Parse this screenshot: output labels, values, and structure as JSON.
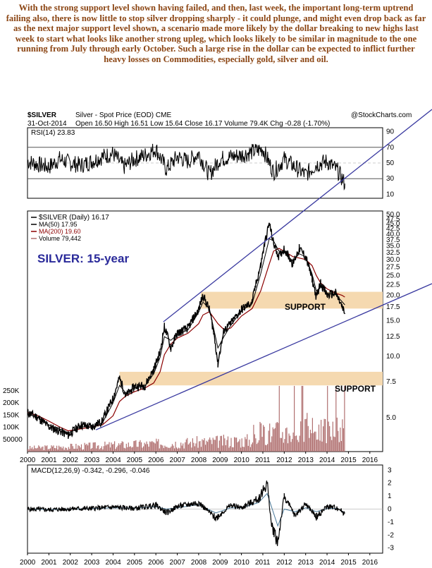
{
  "commentary": "With the strong support level shown having failed, and then, last week, the important long-term uptrend failing also, there is now little to stop silver dropping sharply - it could plunge, and might even drop back as far as the next major support level shown, a scenario made more likely by the dollar breaking to new highs last week to start what looks like another strong upleg, which looks likely to be similar in magnitude to the one running from July through early October. Such a large rise in the dollar can be expected to inflict further heavy losses on Commodities, especially gold, silver and oil.",
  "header": {
    "symbol": "$SILVER",
    "name": "Silver - Spot Price (EOD) CME",
    "watermark": "@StockCharts.com",
    "date": "31-Oct-2014",
    "quote": "Open 16.50  High 16.51  Low 15.64  Close 16.17  Volume 79.4K  Chg -0.28 (-1.70%)"
  },
  "colors": {
    "price": "#000000",
    "ma50": "#000000",
    "ma200": "#8b0000",
    "volume": "#b07070",
    "trendline": "#3a3aa0",
    "support_band": "#f5d9b0",
    "annotation": "#2a2a9a",
    "macd_signal": "#4a7a9a",
    "commentary": "#8b4513"
  },
  "chart_data": [
    {
      "type": "line",
      "panel": "RSI",
      "legend": "RSI(14) 23.83",
      "yticks": [
        10,
        30,
        50,
        70,
        90
      ],
      "ylim": [
        5,
        95
      ],
      "x": [
        2000,
        2000.5,
        2001,
        2001.5,
        2002,
        2002.5,
        2003,
        2003.5,
        2004,
        2004.5,
        2005,
        2005.5,
        2006,
        2006.5,
        2007,
        2007.5,
        2008,
        2008.5,
        2009,
        2009.5,
        2010,
        2010.5,
        2011,
        2011.5,
        2012,
        2012.5,
        2013,
        2013.5,
        2014,
        2014.5,
        2014.83
      ],
      "values": [
        52,
        48,
        45,
        55,
        50,
        47,
        52,
        58,
        62,
        45,
        55,
        60,
        68,
        42,
        58,
        52,
        62,
        35,
        55,
        58,
        60,
        64,
        68,
        38,
        55,
        45,
        35,
        48,
        52,
        40,
        23.83
      ]
    },
    {
      "type": "line",
      "panel": "Price",
      "scale": "log",
      "legend": [
        "$SILVER (Daily) 16.17",
        "MA(50) 17.95",
        "MA(200) 19.60",
        "Volume 79,442"
      ],
      "annotation": "SILVER: 15-year",
      "support_labels": [
        "SUPPORT",
        "SUPPORT"
      ],
      "support_zones": [
        [
          17.2,
          20.8
        ],
        [
          7.2,
          8.4
        ]
      ],
      "yticks": [
        5.0,
        7.5,
        10.0,
        12.5,
        15.0,
        17.5,
        20.0,
        22.5,
        25.0,
        27.5,
        30.0,
        32.5,
        35.0,
        37.5,
        40.0,
        42.5,
        45.0,
        47.5,
        50.0
      ],
      "volume_ticks": [
        "250K",
        "200K",
        "150K",
        "100K",
        "50000"
      ],
      "volume_values": [
        250000,
        200000,
        150000,
        100000,
        50000
      ],
      "xticks": [
        "2000",
        "2001",
        "2002",
        "2003",
        "2004",
        "2005",
        "2006",
        "2007",
        "2008",
        "2009",
        "2010",
        "2011",
        "2012",
        "2013",
        "2014",
        "2015",
        "2016"
      ],
      "xlim": [
        2000,
        2016.6
      ],
      "x": [
        2000,
        2000.5,
        2001,
        2001.5,
        2001.9,
        2002.5,
        2003,
        2003.5,
        2004,
        2004.3,
        2004.6,
        2005,
        2005.5,
        2005.9,
        2006.2,
        2006.4,
        2006.7,
        2007,
        2007.5,
        2008,
        2008.2,
        2008.5,
        2008.9,
        2009.2,
        2009.5,
        2010,
        2010.5,
        2010.9,
        2011.3,
        2011.5,
        2011.75,
        2012,
        2012.4,
        2012.7,
        2013,
        2013.3,
        2013.5,
        2013.7,
        2014,
        2014.4,
        2014.7,
        2014.83
      ],
      "values": [
        5.3,
        5.0,
        4.5,
        4.3,
        4.1,
        4.6,
        4.5,
        4.8,
        6.2,
        7.8,
        6.4,
        7.1,
        7.2,
        8.6,
        10.5,
        14.0,
        11.0,
        13.0,
        13.8,
        17.0,
        20.0,
        17.0,
        9.2,
        13.5,
        14.5,
        17.0,
        18.5,
        28.0,
        45.0,
        36.0,
        31.0,
        34.0,
        28.5,
        34.0,
        31.0,
        24.0,
        19.5,
        23.0,
        20.0,
        20.5,
        17.5,
        16.17
      ],
      "ma50": [
        5.2,
        5.0,
        4.6,
        4.4,
        4.2,
        4.5,
        4.5,
        4.7,
        5.9,
        7.2,
        6.6,
        7.0,
        7.2,
        8.2,
        9.9,
        12.5,
        12.0,
        12.8,
        13.5,
        16.5,
        18.5,
        17.2,
        11.0,
        12.6,
        14.2,
        16.8,
        18.2,
        25.5,
        38.0,
        37.0,
        33.0,
        32.5,
        29.5,
        32.0,
        31.0,
        25.5,
        21.0,
        22.0,
        20.4,
        20.2,
        18.6,
        17.95
      ],
      "ma200": [
        5.3,
        5.1,
        4.8,
        4.5,
        4.3,
        4.4,
        4.5,
        4.6,
        5.1,
        6.0,
        6.4,
        6.7,
        7.0,
        7.4,
        8.4,
        10.2,
        11.5,
        12.3,
        13.0,
        14.5,
        16.0,
        16.6,
        14.5,
        13.5,
        13.8,
        15.8,
        17.2,
        21.0,
        28.5,
        33.0,
        34.0,
        33.0,
        31.0,
        30.5,
        30.0,
        28.0,
        25.0,
        23.0,
        21.5,
        20.5,
        20.0,
        19.6
      ]
    },
    {
      "type": "line",
      "panel": "MACD",
      "legend": "MACD(12,26,9) -0.342, -0.296, -0.046",
      "yticks": [
        3,
        2,
        1,
        0,
        -1,
        -2,
        -3
      ],
      "ylim": [
        -3.4,
        3.4
      ],
      "x": [
        2000,
        2001,
        2002,
        2003,
        2004,
        2005,
        2006,
        2006.5,
        2007,
        2008,
        2008.8,
        2009.5,
        2010,
        2010.8,
        2011.2,
        2011.4,
        2011.7,
        2012,
        2012.5,
        2013,
        2013.5,
        2014,
        2014.5,
        2014.83
      ],
      "values": [
        0.0,
        -0.05,
        0.02,
        0.05,
        0.15,
        0.05,
        0.3,
        -0.3,
        0.2,
        0.5,
        -0.7,
        0.3,
        0.1,
        0.8,
        2.0,
        -1.2,
        -2.5,
        1.0,
        -0.5,
        0.4,
        -0.6,
        0.2,
        0.1,
        -0.342
      ],
      "signal": [
        0.0,
        -0.03,
        0.0,
        0.04,
        0.1,
        0.08,
        0.18,
        0.0,
        0.1,
        0.35,
        -0.3,
        0.1,
        0.1,
        0.5,
        1.2,
        0.2,
        -1.3,
        0.0,
        -0.2,
        0.1,
        -0.2,
        0.05,
        0.05,
        -0.296
      ]
    }
  ]
}
